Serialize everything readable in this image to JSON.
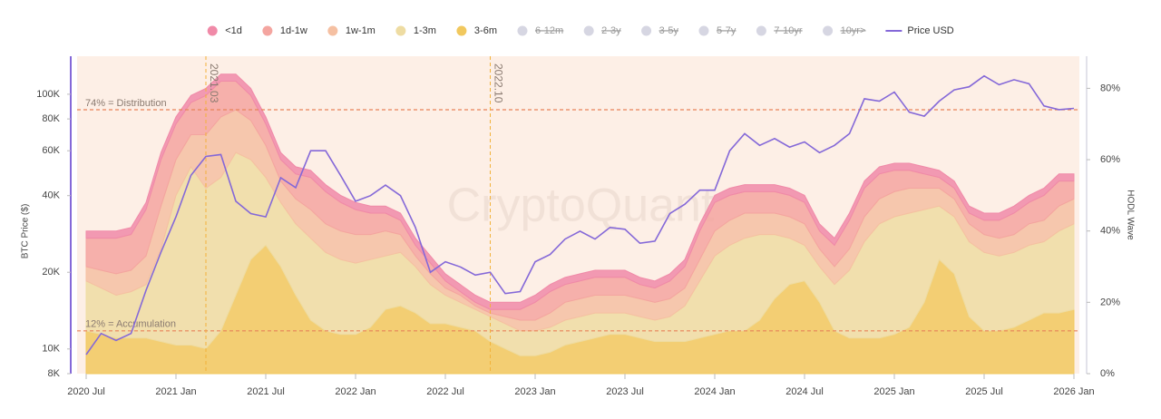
{
  "chart_data": {
    "type": "area",
    "y_label": "BTC Price ($)",
    "y2_label": "HODL Wave",
    "watermark": "CryptoQuant",
    "log_scale": true,
    "x": [
      "2020-07",
      "2020-08",
      "2020-09",
      "2020-10",
      "2020-11",
      "2020-12",
      "2021-01",
      "2021-02",
      "2021-03",
      "2021-04",
      "2021-05",
      "2021-06",
      "2021-07",
      "2021-08",
      "2021-09",
      "2021-10",
      "2021-11",
      "2021-12",
      "2022-01",
      "2022-02",
      "2022-03",
      "2022-04",
      "2022-05",
      "2022-06",
      "2022-07",
      "2022-08",
      "2022-09",
      "2022-10",
      "2022-11",
      "2022-12",
      "2023-01",
      "2023-02",
      "2023-03",
      "2023-04",
      "2023-05",
      "2023-06",
      "2023-07",
      "2023-08",
      "2023-09",
      "2023-10",
      "2023-11",
      "2023-12",
      "2024-01",
      "2024-02",
      "2024-03",
      "2024-04",
      "2024-05",
      "2024-06",
      "2024-07",
      "2024-08",
      "2024-09",
      "2024-10",
      "2024-11",
      "2024-12",
      "2025-01",
      "2025-02",
      "2025-03",
      "2025-04",
      "2025-05",
      "2025-06",
      "2025-07",
      "2025-08",
      "2025-09",
      "2025-10",
      "2025-11",
      "2025-12",
      "2026-01"
    ],
    "xlim": [
      "2020-07",
      "2026-01"
    ],
    "xticks": [
      {
        "value": "2020-07",
        "label": "2020 Jul"
      },
      {
        "value": "2021-01",
        "label": "2021 Jan"
      },
      {
        "value": "2021-07",
        "label": "2021 Jul"
      },
      {
        "value": "2022-01",
        "label": "2022 Jan"
      },
      {
        "value": "2022-07",
        "label": "2022 Jul"
      },
      {
        "value": "2023-01",
        "label": "2023 Jan"
      },
      {
        "value": "2023-07",
        "label": "2023 Jul"
      },
      {
        "value": "2024-01",
        "label": "2024 Jan"
      },
      {
        "value": "2024-07",
        "label": "2024 Jul"
      },
      {
        "value": "2025-01",
        "label": "2025 Jan"
      },
      {
        "value": "2025-07",
        "label": "2025 Jul"
      },
      {
        "value": "2026-01",
        "label": "2026 Jan"
      }
    ],
    "ylim": [
      8000,
      141000
    ],
    "yticks": [
      {
        "value": 8000,
        "label": "8K"
      },
      {
        "value": 10000,
        "label": "10K"
      },
      {
        "value": 20000,
        "label": "20K"
      },
      {
        "value": 40000,
        "label": "40K"
      },
      {
        "value": 60000,
        "label": "60K"
      },
      {
        "value": 80000,
        "label": "80K"
      },
      {
        "value": 100000,
        "label": "100K"
      }
    ],
    "y2lim": [
      0,
      89
    ],
    "y2ticks": [
      {
        "value": 0,
        "label": "0%"
      },
      {
        "value": 20,
        "label": "20%"
      },
      {
        "value": 40,
        "label": "40%"
      },
      {
        "value": 60,
        "label": "60%"
      },
      {
        "value": 80,
        "label": "80%"
      }
    ],
    "hlines": [
      {
        "y2": 74,
        "label": "74% = Distribution"
      },
      {
        "y2": 12,
        "label": "12% = Accumulation"
      }
    ],
    "vlines": [
      {
        "x": "2021-03",
        "label": "2021.03"
      },
      {
        "x": "2022-10",
        "label": "2022.10"
      }
    ],
    "series": [
      {
        "name": "<1d",
        "color": "#f08aa8",
        "axis": "y2",
        "visible": true,
        "values": [
          2,
          2,
          2,
          2,
          2,
          2,
          2,
          2,
          2,
          2,
          2,
          2,
          2,
          2,
          2,
          2,
          2,
          2,
          2,
          2,
          2,
          2,
          2,
          2,
          2,
          2,
          2,
          2,
          2,
          2,
          2,
          2,
          2,
          2,
          2,
          2,
          2,
          2,
          2,
          2,
          2,
          2,
          2,
          2,
          2,
          2,
          2,
          2,
          2,
          2,
          2,
          2,
          2,
          2,
          2,
          2,
          2,
          2,
          2,
          2,
          2,
          2,
          2,
          2,
          2,
          2,
          2
        ]
      },
      {
        "name": "1d-1w",
        "color": "#f4a5a0",
        "axis": "y2",
        "visible": true,
        "values": [
          8,
          9,
          10,
          10,
          13,
          13,
          10,
          9,
          11,
          10,
          8,
          7,
          6,
          6,
          7,
          9,
          9,
          8,
          7,
          6,
          5,
          4,
          3,
          3,
          2,
          1,
          1,
          1,
          2,
          3,
          5,
          6,
          5,
          5,
          5,
          5,
          5,
          4,
          4,
          5,
          6,
          8,
          8,
          7,
          6,
          6,
          6,
          6,
          6,
          5,
          6,
          8,
          8,
          7,
          6,
          5,
          4,
          3,
          3,
          3,
          4,
          5,
          6,
          6,
          7,
          7,
          5
        ]
      },
      {
        "name": "1w-1m",
        "color": "#f5c0a2",
        "axis": "y2",
        "visible": true,
        "values": [
          4,
          5,
          6,
          6,
          8,
          12,
          10,
          9,
          15,
          17,
          12,
          11,
          9,
          6,
          7,
          8,
          8,
          8,
          8,
          7,
          7,
          5,
          3,
          3,
          2,
          2,
          1,
          1,
          2,
          3,
          3,
          4,
          5,
          5,
          5,
          5,
          5,
          5,
          5,
          5,
          5,
          6,
          7,
          7,
          7,
          6,
          6,
          6,
          6,
          5,
          5,
          6,
          7,
          7,
          7,
          7,
          6,
          5,
          5,
          5,
          5,
          5,
          5,
          6,
          6,
          7,
          7
        ]
      },
      {
        "name": "1-3m",
        "color": "#eedca2",
        "axis": "y2",
        "visible": true,
        "values": [
          14,
          13,
          12,
          13,
          15,
          26,
          42,
          50,
          45,
          43,
          40,
          28,
          19,
          18,
          20,
          23,
          22,
          21,
          20,
          19,
          15,
          15,
          13,
          11,
          8,
          7,
          6,
          7,
          7,
          7,
          7,
          7,
          7,
          7,
          7,
          6,
          6,
          6,
          6,
          7,
          10,
          16,
          22,
          24,
          26,
          24,
          18,
          13,
          10,
          10,
          13,
          19,
          27,
          32,
          33,
          32,
          26,
          15,
          16,
          21,
          22,
          21,
          21,
          21,
          20,
          23,
          24
        ]
      },
      {
        "name": "3-6m",
        "color": "#f1c85e",
        "axis": "y2",
        "visible": true,
        "values": [
          12,
          11,
          10,
          10,
          10,
          9,
          8,
          8,
          7,
          12,
          22,
          32,
          36,
          30,
          22,
          15,
          12,
          11,
          11,
          13,
          18,
          19,
          17,
          14,
          14,
          13,
          12,
          9,
          7,
          5,
          5,
          6,
          8,
          9,
          10,
          11,
          11,
          10,
          9,
          9,
          9,
          10,
          11,
          12,
          12,
          15,
          21,
          25,
          26,
          20,
          12,
          10,
          10,
          10,
          11,
          13,
          20,
          32,
          28,
          16,
          12,
          12,
          13,
          15,
          17,
          17,
          18
        ]
      },
      {
        "name": "6-12m",
        "color": "#d6d6e2",
        "axis": "y2",
        "visible": false
      },
      {
        "name": "2-3y",
        "color": "#d6d6e2",
        "axis": "y2",
        "visible": false
      },
      {
        "name": "3-5y",
        "color": "#d6d6e2",
        "axis": "y2",
        "visible": false
      },
      {
        "name": "5-7y",
        "color": "#d6d6e2",
        "axis": "y2",
        "visible": false
      },
      {
        "name": "7-10yr",
        "color": "#d6d6e2",
        "axis": "y2",
        "visible": false
      },
      {
        "name": "10yr>",
        "color": "#d6d6e2",
        "axis": "y2",
        "visible": false
      },
      {
        "name": "Price USD",
        "color": "#8468d8",
        "axis": "y",
        "type": "line",
        "visible": true,
        "values": [
          9500,
          11500,
          10800,
          11500,
          17000,
          24000,
          33000,
          48000,
          57000,
          58000,
          38000,
          34000,
          33000,
          47000,
          43000,
          60000,
          60000,
          48000,
          38000,
          40000,
          44000,
          40000,
          30000,
          20000,
          22000,
          21000,
          19500,
          20000,
          16500,
          16800,
          22000,
          23500,
          27000,
          29000,
          27000,
          30000,
          29500,
          26000,
          26500,
          34000,
          37000,
          42000,
          42000,
          60000,
          70000,
          63000,
          67000,
          62000,
          65000,
          59000,
          63000,
          70000,
          96000,
          94000,
          102000,
          85000,
          82000,
          94000,
          104000,
          107000,
          118000,
          109000,
          114000,
          110000,
          90000,
          87000,
          88000
        ]
      }
    ]
  }
}
